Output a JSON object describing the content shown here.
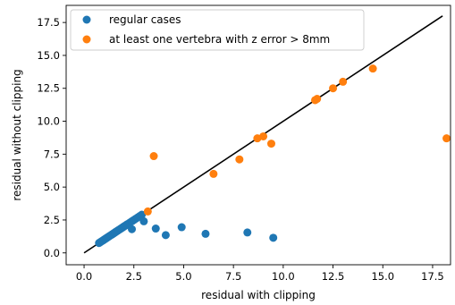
{
  "chart_data": {
    "type": "scatter",
    "title": "",
    "xlabel": "residual with clipping",
    "ylabel": "residual without clipping",
    "xlim": [
      -0.9,
      18.4
    ],
    "ylim": [
      -0.9,
      18.8
    ],
    "xticks": [
      "0.0",
      "2.5",
      "5.0",
      "7.5",
      "10.0",
      "12.5",
      "15.0",
      "17.5"
    ],
    "yticks": [
      "0.0",
      "2.5",
      "5.0",
      "7.5",
      "10.0",
      "12.5",
      "15.0",
      "17.5"
    ],
    "grid": false,
    "legend_position": "top-left",
    "series": [
      {
        "name": "regular cases",
        "color": "#1f77b4",
        "x": [
          0.75,
          0.8,
          0.85,
          0.9,
          0.95,
          1.0,
          1.05,
          1.1,
          1.15,
          1.2,
          1.25,
          1.3,
          1.35,
          1.4,
          1.45,
          1.5,
          1.55,
          1.6,
          1.65,
          1.7,
          1.75,
          1.8,
          1.85,
          1.9,
          1.95,
          2.0,
          2.05,
          2.1,
          2.15,
          2.2,
          2.3,
          2.4,
          2.5,
          2.6,
          2.7,
          2.8,
          2.9,
          2.4,
          3.0,
          3.6,
          4.1,
          4.9,
          6.1,
          8.2,
          9.5
        ],
        "y": [
          0.75,
          0.8,
          0.85,
          0.9,
          0.95,
          1.0,
          1.05,
          1.1,
          1.15,
          1.2,
          1.25,
          1.3,
          1.35,
          1.4,
          1.45,
          1.5,
          1.55,
          1.6,
          1.65,
          1.7,
          1.75,
          1.8,
          1.85,
          1.9,
          1.95,
          2.0,
          2.05,
          2.1,
          2.15,
          2.2,
          2.3,
          2.4,
          2.5,
          2.6,
          2.7,
          2.8,
          2.9,
          1.8,
          2.4,
          1.85,
          1.35,
          1.95,
          1.45,
          1.55,
          1.15
        ]
      },
      {
        "name": "at least one vertebra with z error > 8mm",
        "color": "#ff7f0e",
        "x": [
          3.2,
          3.5,
          6.5,
          7.8,
          8.7,
          9.0,
          9.4,
          11.6,
          11.7,
          12.5,
          13.0,
          14.5,
          18.2
        ],
        "y": [
          3.15,
          7.35,
          6.0,
          7.1,
          8.7,
          8.85,
          8.3,
          11.6,
          11.7,
          12.5,
          13.0,
          14.0,
          8.7
        ]
      }
    ],
    "reference_line": {
      "color": "#000000",
      "x": [
        0,
        18
      ],
      "y": [
        0,
        18
      ]
    }
  }
}
